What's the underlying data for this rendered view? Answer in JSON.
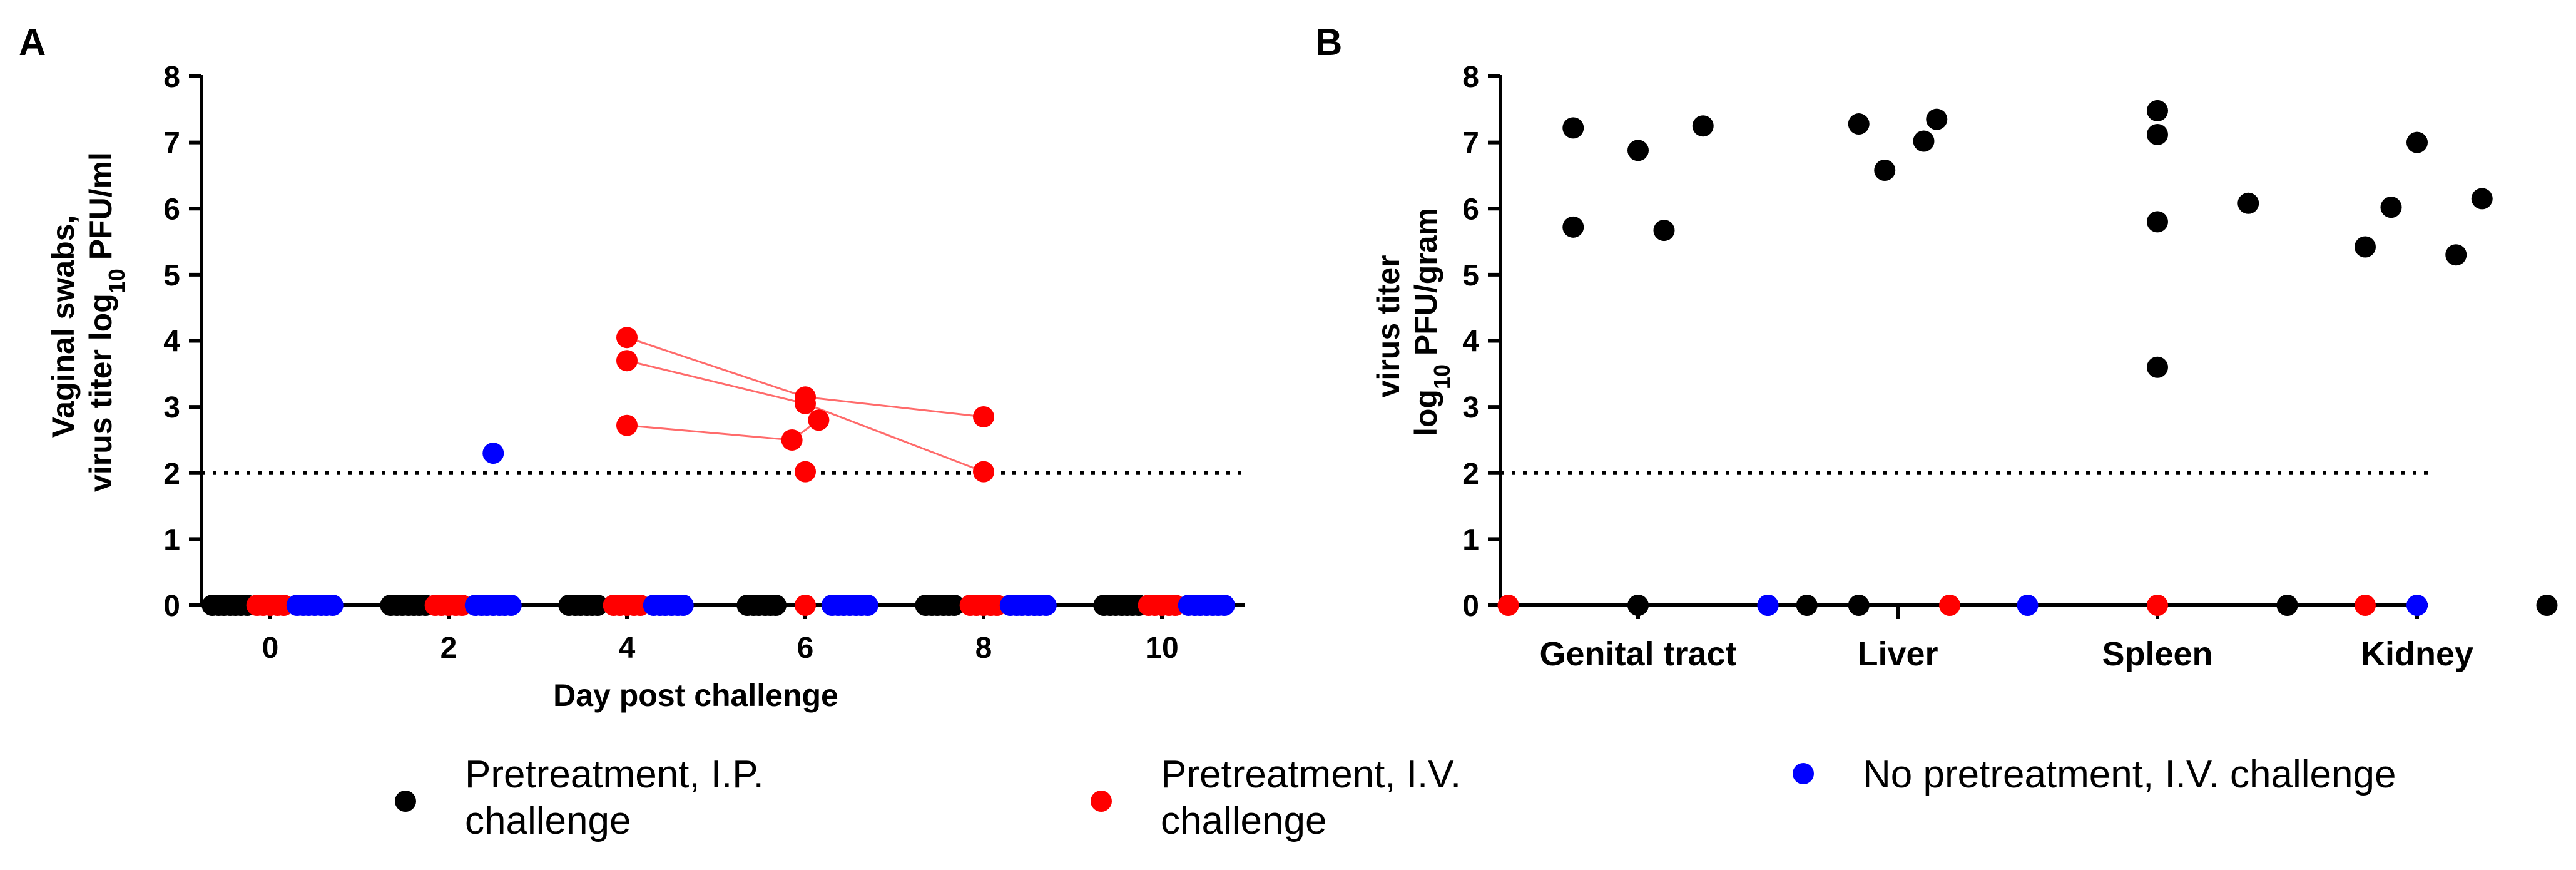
{
  "colors": {
    "black": "#000000",
    "red": "#ff0000",
    "blue": "#0000ff",
    "link": "#ff6b6b"
  },
  "legend": [
    {
      "lines": [
        "Pretreatment, I.P.",
        "challenge"
      ],
      "color": "#000000"
    },
    {
      "lines": [
        "Pretreatment, I.V.",
        "challenge"
      ],
      "color": "#ff0000"
    },
    {
      "lines": [
        "No pretreatment, I.V. challenge"
      ],
      "color": "#0000ff"
    }
  ],
  "chart_data": [
    {
      "panel": "A",
      "type": "scatter",
      "xlabel": "Day post challenge",
      "ylabel_lines": [
        "Vaginal swabs,",
        "virus titer log",
        "10",
        " PFU/ml"
      ],
      "ylim": [
        0,
        8
      ],
      "yticks": [
        "0",
        "1",
        "2",
        "3",
        "4",
        "5",
        "6",
        "7",
        "8"
      ],
      "xlim": [
        -0.8,
        10.8
      ],
      "xticks": [
        "0",
        "2",
        "4",
        "6",
        "8",
        "10"
      ],
      "detection_limit": 2,
      "series": [
        {
          "name": "Pretreatment, I.P. challenge",
          "color": "#000000",
          "x": [
            -0.65,
            -0.58,
            -0.52,
            -0.45,
            -0.39,
            -0.33,
            -0.26,
            1.35,
            1.42,
            1.48,
            1.55,
            1.61,
            1.67,
            1.74,
            3.35,
            3.42,
            3.48,
            3.55,
            3.61,
            3.67,
            5.35,
            5.42,
            5.48,
            5.55,
            5.61,
            5.67,
            7.35,
            7.42,
            7.48,
            7.55,
            7.61,
            7.67,
            9.35,
            9.42,
            9.48,
            9.55,
            9.61,
            9.67,
            9.74
          ],
          "y": [
            0,
            0,
            0,
            0,
            0,
            0,
            0,
            0,
            0,
            0,
            0,
            0,
            0,
            0,
            0,
            0,
            0,
            0,
            0,
            0,
            0,
            0,
            0,
            0,
            0,
            0,
            0,
            0,
            0,
            0,
            0,
            0,
            0,
            0,
            0,
            0,
            0,
            0,
            0
          ]
        },
        {
          "name": "Pretreatment, I.V. challenge",
          "color": "#ff0000",
          "x": [
            -0.15,
            -0.08,
            0.0,
            0.08,
            0.15,
            1.85,
            1.92,
            2.0,
            2.08,
            2.15,
            3.85,
            3.92,
            4.0,
            4.08,
            4.15,
            6.0,
            7.85,
            7.92,
            8.0,
            8.08,
            8.15,
            9.85,
            9.92,
            10.0,
            10.08,
            10.15,
            4.0,
            4.0,
            4.0,
            5.85,
            6.0,
            6.0,
            6.0,
            6.15,
            8.0,
            8.0
          ],
          "y": [
            0,
            0,
            0,
            0,
            0,
            0,
            0,
            0,
            0,
            0,
            0,
            0,
            0,
            0,
            0,
            0,
            0,
            0,
            0,
            0,
            0,
            0,
            0,
            0,
            0,
            0,
            4.05,
            3.7,
            2.72,
            2.5,
            3.15,
            3.05,
            2.02,
            2.8,
            2.85,
            2.02
          ]
        },
        {
          "name": "No pretreatment, I.V. challenge",
          "color": "#0000ff",
          "x": [
            0.3,
            0.37,
            0.43,
            0.5,
            0.57,
            0.63,
            0.7,
            2.3,
            2.37,
            2.43,
            2.5,
            2.57,
            2.63,
            2.7,
            4.3,
            4.37,
            4.43,
            4.5,
            4.57,
            4.63,
            6.3,
            6.37,
            6.43,
            6.5,
            6.57,
            6.63,
            6.7,
            8.3,
            8.37,
            8.43,
            8.5,
            8.57,
            8.63,
            8.7,
            10.3,
            10.37,
            10.43,
            10.5,
            10.57,
            10.63,
            10.7,
            2.5
          ],
          "y": [
            0,
            0,
            0,
            0,
            0,
            0,
            0,
            0,
            0,
            0,
            0,
            0,
            0,
            0,
            0,
            0,
            0,
            0,
            0,
            0,
            0,
            0,
            0,
            0,
            0,
            0,
            0,
            0,
            0,
            0,
            0,
            0,
            0,
            0,
            0,
            0,
            0,
            0,
            0,
            0,
            0,
            2.3
          ]
        }
      ],
      "links": [
        {
          "x": [
            4.0,
            6.0,
            8.0
          ],
          "y": [
            4.05,
            3.15,
            2.85
          ]
        },
        {
          "x": [
            4.0,
            6.0,
            8.0
          ],
          "y": [
            3.7,
            3.05,
            2.02
          ]
        },
        {
          "x": [
            4.0,
            5.85,
            6.15
          ],
          "y": [
            2.72,
            2.5,
            2.8
          ]
        }
      ]
    },
    {
      "panel": "B",
      "type": "scatter",
      "ylabel_lines": [
        "virus titer",
        "log",
        "10",
        " PFU/gram"
      ],
      "ylim": [
        0,
        8
      ],
      "yticks": [
        "0",
        "1",
        "2",
        "3",
        "4",
        "5",
        "6",
        "7",
        "8"
      ],
      "categories": [
        "Genital tract",
        "Liver",
        "Spleen",
        "Kidney"
      ],
      "detection_limit": 2,
      "series": [
        {
          "name": "Pretreatment, I.P. challenge",
          "color": "#000000",
          "x": [
            -0.25,
            0.25,
            0.0,
            -0.25,
            0.1,
            0.0,
            0.85,
            1.15,
            1.1,
            0.95,
            0.65,
            0.85,
            2.0,
            2.0,
            2.0,
            2.35,
            2.0,
            2.5,
            3.0,
            2.8,
            3.25,
            2.9,
            3.15,
            3.5
          ],
          "y": [
            7.22,
            7.25,
            6.88,
            5.72,
            5.67,
            0,
            7.28,
            7.35,
            7.02,
            6.58,
            0,
            0,
            7.48,
            7.12,
            5.8,
            6.08,
            3.6,
            0,
            7.0,
            5.42,
            6.15,
            6.02,
            5.3,
            0
          ]
        },
        {
          "name": "Pretreatment, I.V. challenge",
          "color": "#ff0000",
          "x": [
            -0.5,
            1.2,
            2.0,
            2.8
          ],
          "y": [
            0,
            0,
            0,
            0
          ]
        },
        {
          "name": "No pretreatment, I.V. challenge",
          "color": "#0000ff",
          "x": [
            0.5,
            0.5,
            1.5,
            3.0
          ],
          "y": [
            0,
            0,
            0,
            0
          ]
        }
      ]
    }
  ]
}
